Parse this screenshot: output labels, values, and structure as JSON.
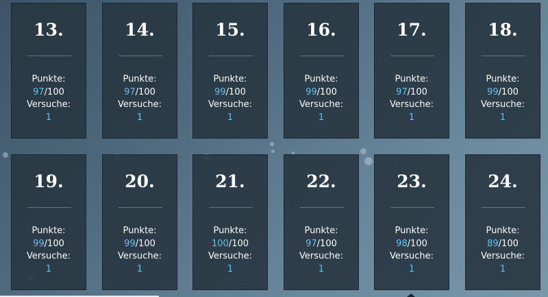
{
  "labels": {
    "points": "Punkte:",
    "attempts": "Versuche:"
  },
  "cards": [
    {
      "day": "13.",
      "score": "97",
      "max": "/100",
      "attempts": "1"
    },
    {
      "day": "14.",
      "score": "97",
      "max": "/100",
      "attempts": "1"
    },
    {
      "day": "15.",
      "score": "99",
      "max": "/100",
      "attempts": "1"
    },
    {
      "day": "16.",
      "score": "99",
      "max": "/100",
      "attempts": "1"
    },
    {
      "day": "17.",
      "score": "97",
      "max": "/100",
      "attempts": "1"
    },
    {
      "day": "18.",
      "score": "99",
      "max": "/100",
      "attempts": "1"
    },
    {
      "day": "19.",
      "score": "99",
      "max": "/100",
      "attempts": "1"
    },
    {
      "day": "20.",
      "score": "99",
      "max": "/100",
      "attempts": "1"
    },
    {
      "day": "21.",
      "score": "100",
      "max": "/100",
      "attempts": "1"
    },
    {
      "day": "22.",
      "score": "97",
      "max": "/100",
      "attempts": "1"
    },
    {
      "day": "23.",
      "score": "98",
      "max": "/100",
      "attempts": "1"
    },
    {
      "day": "24.",
      "score": "89",
      "max": "/100",
      "attempts": "1"
    }
  ],
  "colors": {
    "background": "#4f6a7e",
    "card": "#28374a",
    "highlight": "#5fc4ef",
    "text": "#ffffff"
  }
}
